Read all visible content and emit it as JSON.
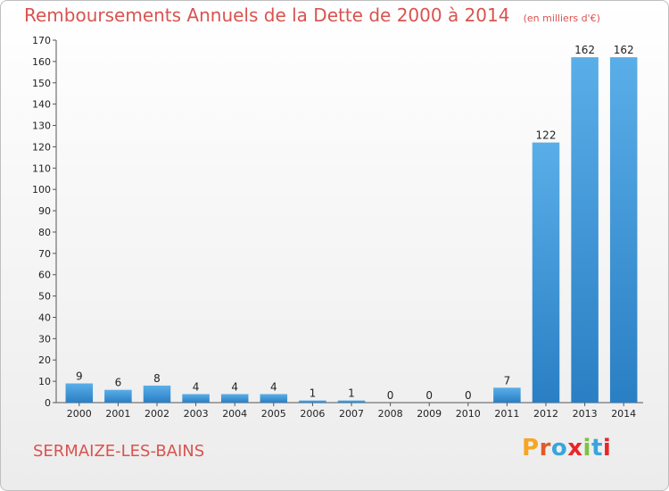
{
  "header": {
    "title": "Remboursements Annuels de la Dette de 2000 à 2014",
    "subtitle": "(en milliers d'€)"
  },
  "footer": {
    "place": "SERMAIZE-LES-BAINS",
    "logo": "Proxiti"
  },
  "colors": {
    "bar_light": "#5aaee8",
    "bar_dark": "#2a7fc4",
    "title": "#d9534f",
    "logo_letters": [
      "#f5a623",
      "#e05a2b",
      "#3aa5dc",
      "#e8262a",
      "#7cc242",
      "#3aa5dc",
      "#e8262a"
    ]
  },
  "chart_data": {
    "type": "bar",
    "categories": [
      "2000",
      "2001",
      "2002",
      "2003",
      "2004",
      "2005",
      "2006",
      "2007",
      "2008",
      "2009",
      "2010",
      "2011",
      "2012",
      "2013",
      "2014"
    ],
    "values": [
      9,
      6,
      8,
      4,
      4,
      4,
      1,
      1,
      0,
      0,
      0,
      7,
      122,
      162,
      162
    ],
    "value_labels": [
      "9",
      "6",
      "8",
      "4",
      "4",
      "4",
      "1",
      "1",
      "0",
      "0",
      "0",
      "7",
      "122",
      "162",
      "162"
    ],
    "yticks": [
      "0",
      "10",
      "20",
      "30",
      "40",
      "50",
      "60",
      "70",
      "80",
      "90",
      "100",
      "110",
      "120",
      "130",
      "140",
      "150",
      "160",
      "170"
    ],
    "ylim": [
      0,
      170
    ],
    "grid": false,
    "title": "Remboursements Annuels de la Dette de 2000 à 2014",
    "xlabel": "",
    "ylabel": ""
  }
}
